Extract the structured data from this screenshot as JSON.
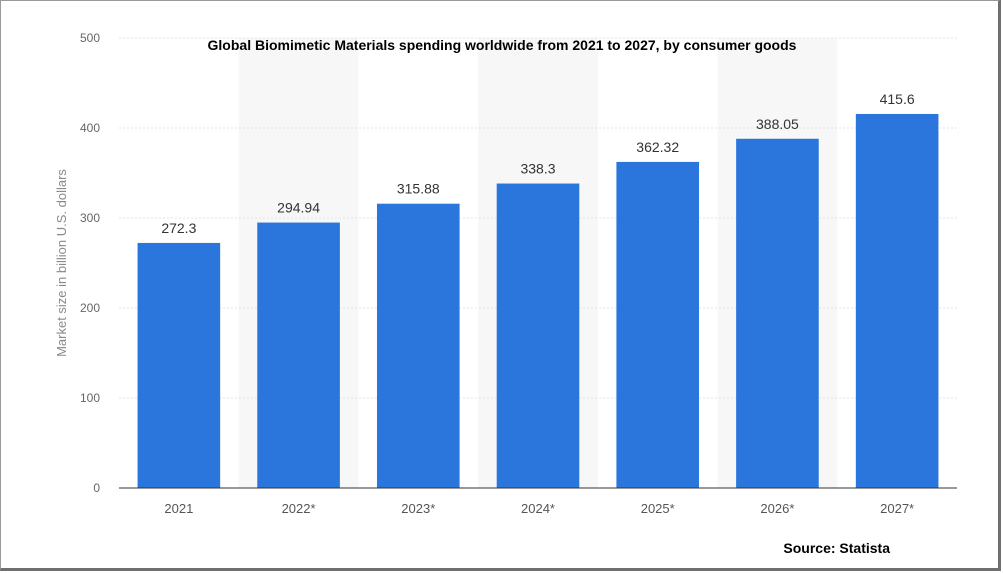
{
  "chart_data": {
    "type": "bar",
    "title": "Global Biomimetic Materials spending worldwide from 2021 to 2027, by consumer goods",
    "ylabel": "Market size in billion U.S. dollars",
    "xlabel": "",
    "categories": [
      "2021",
      "2022*",
      "2023*",
      "2024*",
      "2025*",
      "2026*",
      "2027*"
    ],
    "values": [
      272.3,
      294.94,
      315.88,
      338.3,
      362.32,
      388.05,
      415.6
    ],
    "value_labels": [
      "272.3",
      "294.94",
      "315.88",
      "338.3",
      "362.32",
      "388.05",
      "415.6"
    ],
    "ylim": [
      0,
      500
    ],
    "yticks": [
      "0",
      "100",
      "200",
      "300",
      "400",
      "500"
    ],
    "grid": true,
    "bar_color": "#2a76dd",
    "source": "Source: Statista"
  }
}
